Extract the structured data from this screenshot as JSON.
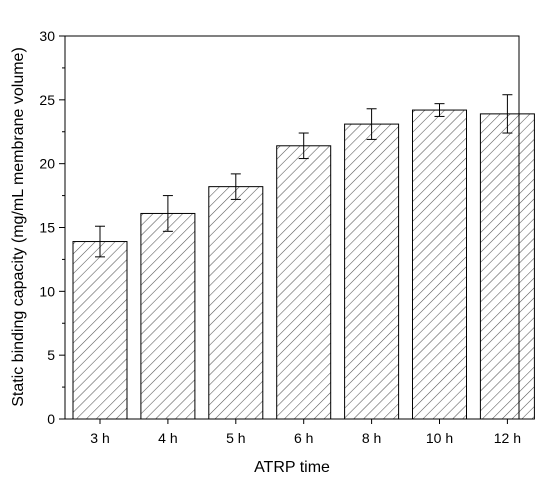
{
  "chart_data": {
    "type": "bar",
    "title": "",
    "xlabel": "ATRP time",
    "ylabel": "Static binding capacity (mg/mL membrane volume)",
    "categories": [
      "3 h",
      "4 h",
      "5 h",
      "6 h",
      "8 h",
      "10 h",
      "12 h"
    ],
    "values": [
      13.9,
      16.1,
      18.2,
      21.4,
      23.1,
      24.2,
      23.9
    ],
    "errors": [
      1.2,
      1.4,
      1.0,
      1.0,
      1.2,
      0.5,
      1.5
    ],
    "ylim": [
      0,
      30
    ],
    "yticks": [
      0,
      5,
      10,
      15,
      20,
      25,
      30
    ],
    "grid": false,
    "bar_fill": "hatched",
    "bar_edge_color": "#000000",
    "hatch_color": "#555555"
  }
}
